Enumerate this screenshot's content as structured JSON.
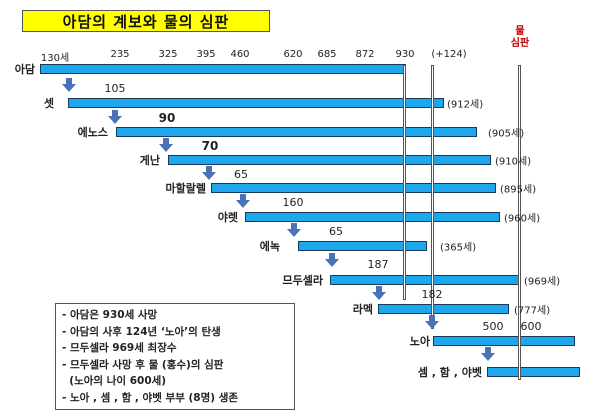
{
  "title": "아담의 계보와 물의 심판",
  "ticks": [
    "130세",
    "235",
    "325",
    "395",
    "460",
    "620",
    "685",
    "872",
    "930",
    "(+124)"
  ],
  "flood_label": [
    "물",
    "심판"
  ],
  "colors": {
    "bar": "#1ea7ec",
    "title_bg": "#ffff00",
    "flood": "#c00000",
    "arrow": "#4a72b8"
  },
  "people": [
    {
      "name": "아담",
      "gen_age": "",
      "lifespan": ""
    },
    {
      "name": "셋",
      "gen_age": "105",
      "lifespan": "(912세)"
    },
    {
      "name": "에노스",
      "gen_age": "90",
      "lifespan": "(905세)"
    },
    {
      "name": "게난",
      "gen_age": "70",
      "lifespan": "(910세)"
    },
    {
      "name": "마할랄렐",
      "gen_age": "65",
      "lifespan": "(895세)"
    },
    {
      "name": "야렛",
      "gen_age": "160",
      "lifespan": "(960세)"
    },
    {
      "name": "에녹",
      "gen_age": "65",
      "lifespan": "(365세)"
    },
    {
      "name": "므두셀라",
      "gen_age": "187",
      "lifespan": "(969세)"
    },
    {
      "name": "라멕",
      "gen_age": "182",
      "lifespan": "(777세)"
    },
    {
      "name": "노아",
      "gen_age": "500",
      "lifespan": ""
    },
    {
      "name": "셈 , 함 , 야벳",
      "gen_age": "",
      "lifespan": ""
    }
  ],
  "noah_extra_tick": "600",
  "legend": [
    "- 아담은 930세 사망",
    "- 아담의 사후 124년 ‘노아’의 탄생",
    "- 므두셀라 969세 최장수",
    "- 므두셀라 사망 후 물 (홍수)의 심판",
    "  (노아의 나이 600세)",
    "- 노아 , 셈 , 함 , 야벳 부부 (8명) 생존"
  ]
}
